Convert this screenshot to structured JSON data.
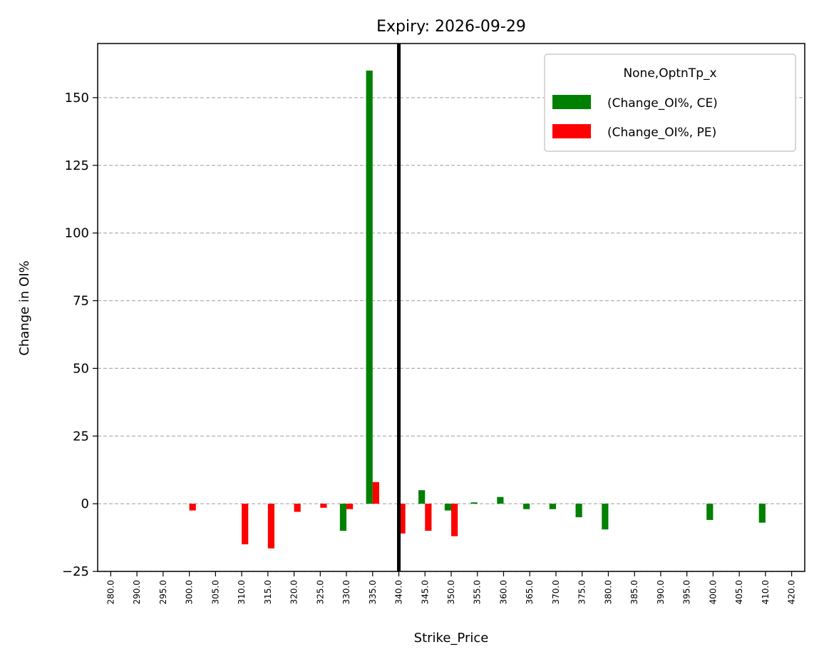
{
  "chart_data": {
    "type": "bar",
    "title": "Expiry: 2026-09-29",
    "xlabel": "Strike_Price",
    "ylabel": "Change in OI%",
    "ylim": [
      -25,
      170
    ],
    "yticks": [
      -25,
      0,
      25,
      50,
      75,
      100,
      125,
      150
    ],
    "grid": "y-dashed",
    "categories": [
      "280.0",
      "290.0",
      "295.0",
      "300.0",
      "305.0",
      "310.0",
      "315.0",
      "320.0",
      "325.0",
      "330.0",
      "335.0",
      "340.0",
      "345.0",
      "350.0",
      "355.0",
      "360.0",
      "365.0",
      "370.0",
      "375.0",
      "380.0",
      "385.0",
      "390.0",
      "395.0",
      "400.0",
      "405.0",
      "410.0",
      "420.0"
    ],
    "series": [
      {
        "name": "(Change_OI%, CE)",
        "color": "#008000",
        "values": [
          0,
          0,
          0,
          0,
          0,
          0,
          0,
          0,
          0,
          -10,
          160,
          0,
          5,
          -2.5,
          0.5,
          2.5,
          -2,
          -2,
          -5,
          -9.5,
          0,
          0,
          0,
          -6,
          0,
          -7,
          0
        ]
      },
      {
        "name": "(Change_OI%, PE)",
        "color": "#ff0000",
        "values": [
          0,
          0,
          0,
          -2.5,
          0,
          -15,
          -16.5,
          -3,
          -1.5,
          -2,
          8,
          -11,
          -10,
          -12,
          0,
          0,
          0,
          0,
          0,
          0,
          0,
          0,
          0,
          0,
          0,
          0,
          0
        ]
      }
    ],
    "vline": {
      "category": "340.0",
      "color": "#000000"
    },
    "legend": {
      "title": "None,OptnTp_x",
      "position": "top-right"
    }
  }
}
